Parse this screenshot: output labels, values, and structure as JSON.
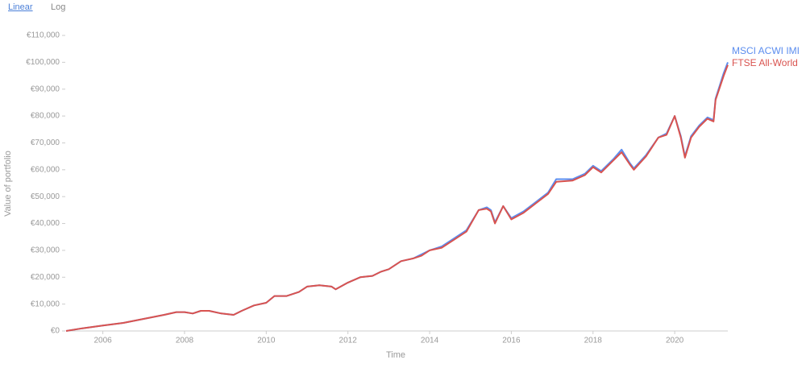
{
  "controls": {
    "linear": "Linear",
    "log": "Log"
  },
  "chart_data": {
    "type": "line",
    "x_label": "Time",
    "y_label": "Value of portfolio",
    "log_scale": false,
    "grid": false,
    "xlim": [
      2005.1,
      2021.3
    ],
    "xticks": [
      2006,
      2008,
      2010,
      2012,
      2014,
      2016,
      2018,
      2020
    ],
    "ylim": [
      0,
      110000
    ],
    "yticks": [
      {
        "value": 0,
        "label": "€0"
      },
      {
        "value": 10000,
        "label": "€10,000"
      },
      {
        "value": 20000,
        "label": "€20,000"
      },
      {
        "value": 30000,
        "label": "€30,000"
      },
      {
        "value": 40000,
        "label": "€40,000"
      },
      {
        "value": 50000,
        "label": "€50,000"
      },
      {
        "value": 60000,
        "label": "€60,000"
      },
      {
        "value": 70000,
        "label": "€70,000"
      },
      {
        "value": 80000,
        "label": "€80,000"
      },
      {
        "value": 90000,
        "label": "€90,000"
      },
      {
        "value": 100000,
        "label": "€100,000"
      },
      {
        "value": 110000,
        "label": "€110,000"
      }
    ],
    "x": [
      2005.1,
      2005.5,
      2006.0,
      2006.5,
      2007.0,
      2007.5,
      2007.8,
      2008.0,
      2008.2,
      2008.4,
      2008.6,
      2008.9,
      2009.2,
      2009.4,
      2009.7,
      2010.0,
      2010.2,
      2010.5,
      2010.8,
      2011.0,
      2011.3,
      2011.6,
      2011.7,
      2012.0,
      2012.3,
      2012.6,
      2012.8,
      2013.0,
      2013.3,
      2013.6,
      2013.8,
      2014.0,
      2014.3,
      2014.6,
      2014.9,
      2015.2,
      2015.4,
      2015.5,
      2015.6,
      2015.8,
      2016.0,
      2016.3,
      2016.6,
      2016.9,
      2017.1,
      2017.5,
      2017.8,
      2018.0,
      2018.2,
      2018.5,
      2018.7,
      2018.9,
      2019.0,
      2019.3,
      2019.6,
      2019.8,
      2020.0,
      2020.15,
      2020.25,
      2020.4,
      2020.6,
      2020.8,
      2020.95,
      2021.0,
      2021.2,
      2021.3
    ],
    "series": [
      {
        "name": "MSCI ACWI IMI",
        "color": "#5b8def",
        "values": [
          0,
          1000,
          2000,
          3000,
          4500,
          6000,
          7000,
          7000,
          6500,
          7500,
          7500,
          6500,
          6000,
          7500,
          9500,
          10500,
          13000,
          13000,
          14500,
          16500,
          17000,
          16500,
          15500,
          18000,
          20000,
          20500,
          22000,
          23000,
          26000,
          27000,
          28500,
          30000,
          31500,
          34500,
          37500,
          45000,
          46000,
          45000,
          40500,
          46500,
          42000,
          44500,
          48000,
          51500,
          56500,
          56500,
          58500,
          61500,
          59500,
          64000,
          67500,
          62500,
          60500,
          65500,
          72000,
          73500,
          80000,
          72500,
          65000,
          72500,
          76500,
          79500,
          78500,
          86500,
          96000,
          100000
        ]
      },
      {
        "name": "FTSE All-World",
        "color": "#d9534f",
        "values": [
          0,
          1000,
          2000,
          3000,
          4500,
          6000,
          7000,
          7000,
          6500,
          7500,
          7500,
          6500,
          6000,
          7500,
          9500,
          10500,
          13000,
          13000,
          14500,
          16500,
          17000,
          16500,
          15500,
          18000,
          20000,
          20500,
          22000,
          23000,
          26000,
          27000,
          28000,
          30000,
          31000,
          34000,
          37000,
          45000,
          45500,
          44500,
          40000,
          46500,
          41500,
          44000,
          47500,
          51000,
          55500,
          56000,
          58000,
          61000,
          59000,
          63500,
          66500,
          62000,
          60000,
          65000,
          72000,
          73000,
          80000,
          72000,
          64500,
          72000,
          76000,
          79000,
          78000,
          86000,
          95000,
          99000
        ]
      }
    ]
  }
}
